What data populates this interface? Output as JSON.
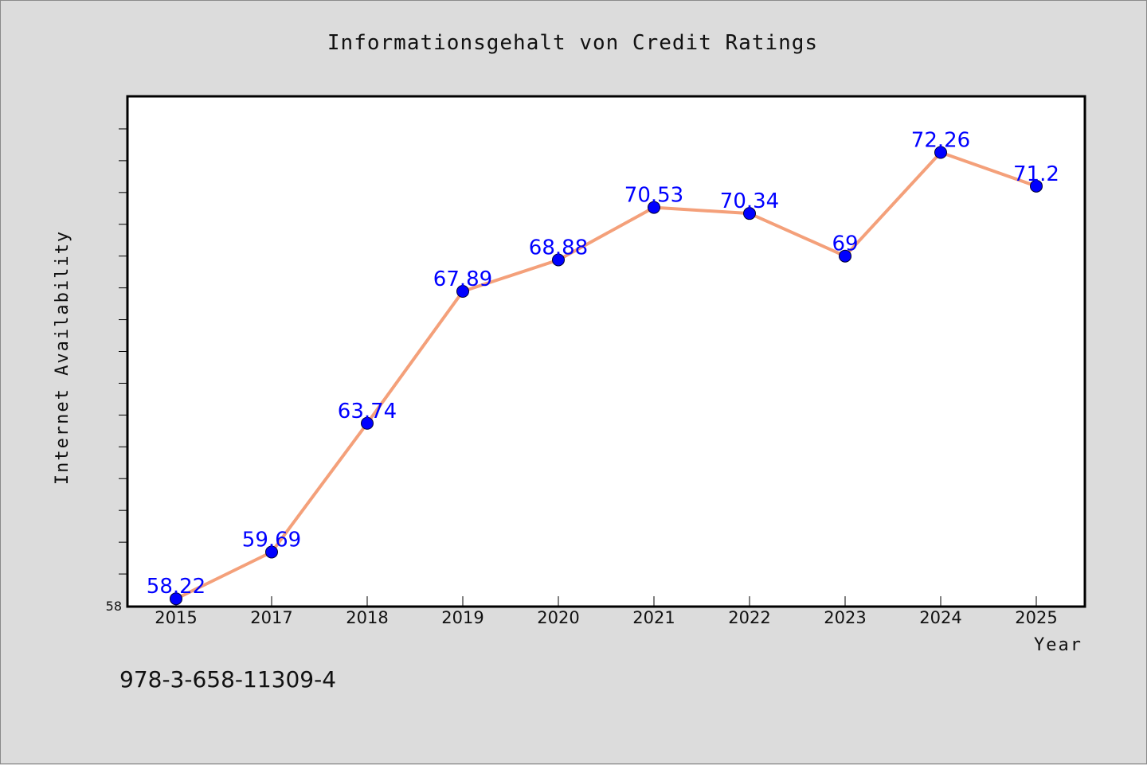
{
  "chart_data": {
    "type": "line",
    "title": "Informationsgehalt von Credit Ratings",
    "xlabel": "Year",
    "ylabel": "Internet Availability",
    "categories": [
      "2015",
      "2017",
      "2018",
      "2019",
      "2020",
      "2021",
      "2022",
      "2023",
      "2024",
      "2025"
    ],
    "series": [
      {
        "values": [
          58.22,
          59.69,
          63.74,
          67.89,
          68.88,
          70.53,
          70.34,
          69,
          72.26,
          71.2
        ],
        "data_labels": [
          "58.22",
          "59.69",
          "63.74",
          "67.89",
          "68.88",
          "70.53",
          "70.34",
          "69",
          "72.26",
          "71.2"
        ]
      }
    ],
    "ylim": [
      58,
      74
    ],
    "y_tick_labels": [
      "58"
    ],
    "y_minor_ticks": [
      59,
      60,
      61,
      62,
      63,
      64,
      65,
      66,
      67,
      68,
      69,
      70,
      71,
      72,
      73
    ],
    "grid": false,
    "colors": {
      "line": "#f4a07a",
      "marker": "#0000ff",
      "data_label": "#0000ff",
      "plot_background": "#ffffff",
      "figure_background": "#dcdcdc"
    }
  },
  "footer": {
    "isbn": "978-3-658-11309-4"
  }
}
